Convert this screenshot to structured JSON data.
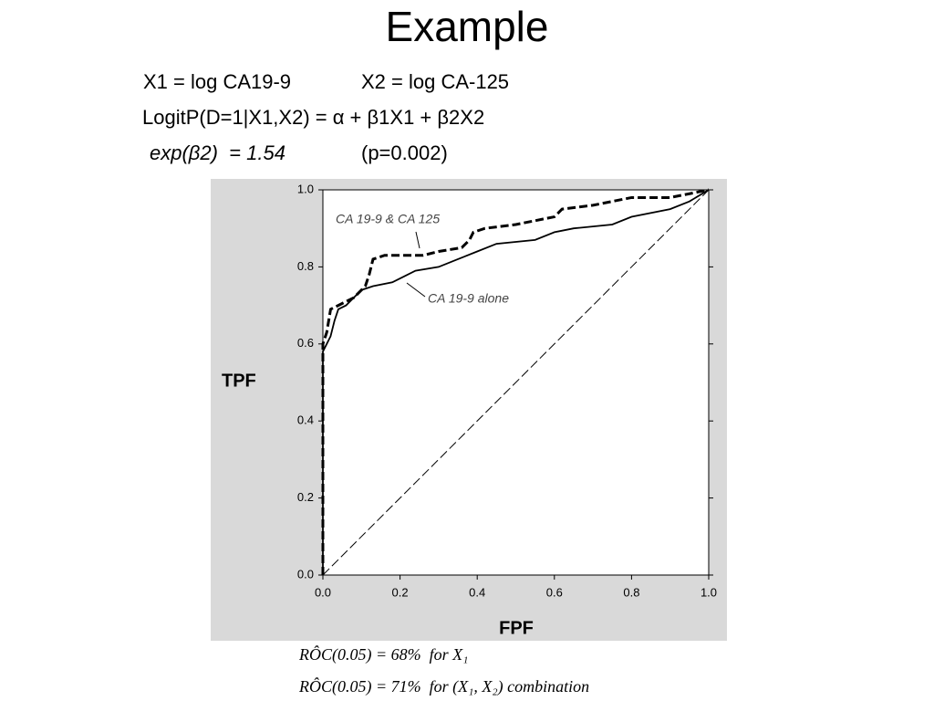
{
  "slide": {
    "title": "Example",
    "line1a": "X1 = log CA19-9",
    "line1b": "X2 = log CA-125",
    "line2": "LogitP(D=1|X1,X2) = α + β1X1 + β2X2",
    "line3a": "exp(β2)  = 1.54",
    "line3b": "(p=0.002)",
    "footer1": "RÔC(0.05) = 68%  for X₁",
    "footer2": "RÔC(0.05) = 71%  for (X₁, X₂) combination"
  },
  "chart_data": {
    "type": "line",
    "x_label": "FPF",
    "y_label": "TPF",
    "xlim": [
      0,
      1
    ],
    "ylim": [
      0,
      1
    ],
    "xticks": [
      {
        "value": 0,
        "label": "0.0"
      },
      {
        "value": 0.2,
        "label": "0.2"
      },
      {
        "value": 0.4,
        "label": "0.4"
      },
      {
        "value": 0.6,
        "label": "0.6"
      },
      {
        "value": 0.8,
        "label": "0.8"
      },
      {
        "value": 1,
        "label": "1.0"
      }
    ],
    "yticks": [
      {
        "value": 0,
        "label": "0.0"
      },
      {
        "value": 0.2,
        "label": "0.2"
      },
      {
        "value": 0.4,
        "label": "0.4"
      },
      {
        "value": 0.6,
        "label": "0.6"
      },
      {
        "value": 0.8,
        "label": "0.8"
      },
      {
        "value": 1,
        "label": "1.0"
      }
    ],
    "series": [
      {
        "name": "CA 19-9 & CA 125",
        "color": "#000000",
        "line_style": "dashed",
        "x": [
          0,
          0,
          0.01,
          0.02,
          0.04,
          0.06,
          0.08,
          0.11,
          0.12,
          0.13,
          0.16,
          0.26,
          0.3,
          0.36,
          0.38,
          0.39,
          0.42,
          0.5,
          0.55,
          0.6,
          0.62,
          0.7,
          0.75,
          0.8,
          0.9,
          0.95,
          1
        ],
        "values": [
          0,
          0.6,
          0.63,
          0.69,
          0.7,
          0.71,
          0.72,
          0.75,
          0.78,
          0.82,
          0.83,
          0.83,
          0.84,
          0.85,
          0.87,
          0.89,
          0.9,
          0.91,
          0.92,
          0.93,
          0.95,
          0.96,
          0.97,
          0.98,
          0.98,
          0.99,
          1
        ]
      },
      {
        "name": "CA 19-9 alone",
        "color": "#000000",
        "line_style": "solid",
        "x": [
          0,
          0,
          0.01,
          0.02,
          0.03,
          0.04,
          0.06,
          0.08,
          0.1,
          0.13,
          0.18,
          0.2,
          0.24,
          0.3,
          0.35,
          0.4,
          0.45,
          0.55,
          0.6,
          0.65,
          0.75,
          0.8,
          0.9,
          0.95,
          1
        ],
        "values": [
          0,
          0.58,
          0.6,
          0.62,
          0.66,
          0.69,
          0.7,
          0.72,
          0.74,
          0.75,
          0.76,
          0.77,
          0.79,
          0.8,
          0.82,
          0.84,
          0.86,
          0.87,
          0.89,
          0.9,
          0.91,
          0.93,
          0.95,
          0.97,
          1
        ]
      },
      {
        "color": "#000000",
        "line_style": "thin-dashed",
        "x": [
          0,
          1
        ],
        "values": [
          0,
          1
        ]
      }
    ]
  }
}
